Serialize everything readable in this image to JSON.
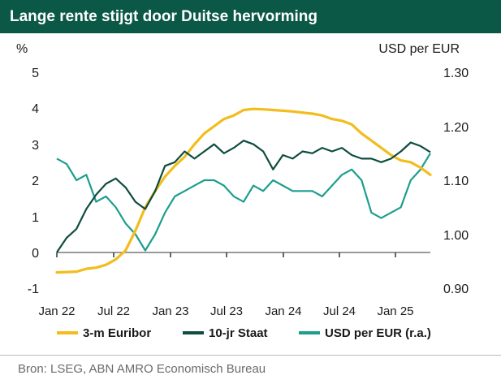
{
  "title": "Lange rente stijgt door Duitse hervorming",
  "source": "Bron: LSEG, ABN AMRO Economisch Bureau",
  "colors": {
    "title_bg": "#0b5847",
    "euribor": "#f2bd1d",
    "staat": "#0e4d3f",
    "usd": "#1c9e8e"
  },
  "chart_data": {
    "type": "line",
    "left_axis": {
      "label": "%",
      "range": [
        -1,
        5
      ],
      "ticks": [
        "-1",
        "0",
        "1",
        "2",
        "3",
        "4",
        "5"
      ]
    },
    "right_axis": {
      "label": "USD per EUR",
      "range": [
        0.9,
        1.3
      ],
      "ticks": [
        "0.90",
        "1.00",
        "1.10",
        "1.20",
        "1.30"
      ]
    },
    "x_ticks": [
      "Jan 22",
      "Jul 22",
      "Jan 23",
      "Jul 23",
      "Jan 24",
      "Jul 24",
      "Jan 25"
    ],
    "series": [
      {
        "name": "3-m Euribor",
        "axis": "left",
        "color_key": "euribor",
        "points": [
          [
            0,
            -0.56
          ],
          [
            1,
            -0.55
          ],
          [
            2,
            -0.54
          ],
          [
            3,
            -0.46
          ],
          [
            4,
            -0.43
          ],
          [
            5,
            -0.35
          ],
          [
            6,
            -0.2
          ],
          [
            7,
            0.05
          ],
          [
            8,
            0.6
          ],
          [
            9,
            1.25
          ],
          [
            10,
            1.7
          ],
          [
            11,
            2.1
          ],
          [
            12,
            2.4
          ],
          [
            13,
            2.65
          ],
          [
            14,
            3.0
          ],
          [
            15,
            3.3
          ],
          [
            16,
            3.5
          ],
          [
            17,
            3.7
          ],
          [
            18,
            3.8
          ],
          [
            19,
            3.95
          ],
          [
            20,
            3.98
          ],
          [
            21,
            3.97
          ],
          [
            22,
            3.95
          ],
          [
            23,
            3.93
          ],
          [
            24,
            3.91
          ],
          [
            25,
            3.88
          ],
          [
            26,
            3.85
          ],
          [
            27,
            3.8
          ],
          [
            28,
            3.7
          ],
          [
            29,
            3.65
          ],
          [
            30,
            3.55
          ],
          [
            31,
            3.3
          ],
          [
            32,
            3.1
          ],
          [
            33,
            2.9
          ],
          [
            34,
            2.7
          ],
          [
            35,
            2.55
          ],
          [
            36,
            2.5
          ],
          [
            37,
            2.35
          ],
          [
            38,
            2.15
          ]
        ]
      },
      {
        "name": "10-jr Staat",
        "axis": "left",
        "color_key": "staat",
        "points": [
          [
            0,
            0.0
          ],
          [
            1,
            0.4
          ],
          [
            2,
            0.65
          ],
          [
            3,
            1.2
          ],
          [
            4,
            1.6
          ],
          [
            5,
            1.9
          ],
          [
            6,
            2.05
          ],
          [
            7,
            1.8
          ],
          [
            8,
            1.4
          ],
          [
            9,
            1.2
          ],
          [
            10,
            1.7
          ],
          [
            11,
            2.4
          ],
          [
            12,
            2.5
          ],
          [
            13,
            2.8
          ],
          [
            14,
            2.6
          ],
          [
            15,
            2.8
          ],
          [
            16,
            3.0
          ],
          [
            17,
            2.75
          ],
          [
            18,
            2.9
          ],
          [
            19,
            3.1
          ],
          [
            20,
            3.0
          ],
          [
            21,
            2.8
          ],
          [
            22,
            2.3
          ],
          [
            23,
            2.7
          ],
          [
            24,
            2.6
          ],
          [
            25,
            2.8
          ],
          [
            26,
            2.75
          ],
          [
            27,
            2.9
          ],
          [
            28,
            2.8
          ],
          [
            29,
            2.9
          ],
          [
            30,
            2.7
          ],
          [
            31,
            2.6
          ],
          [
            32,
            2.6
          ],
          [
            33,
            2.5
          ],
          [
            34,
            2.6
          ],
          [
            35,
            2.8
          ],
          [
            36,
            3.05
          ],
          [
            37,
            2.95
          ],
          [
            38,
            2.78
          ]
        ]
      },
      {
        "name": "USD per EUR (r.a.)",
        "axis": "right",
        "color_key": "usd",
        "points": [
          [
            0,
            1.14
          ],
          [
            1,
            1.13
          ],
          [
            2,
            1.1
          ],
          [
            3,
            1.11
          ],
          [
            4,
            1.06
          ],
          [
            5,
            1.07
          ],
          [
            6,
            1.05
          ],
          [
            7,
            1.02
          ],
          [
            8,
            1.0
          ],
          [
            9,
            0.97
          ],
          [
            10,
            1.0
          ],
          [
            11,
            1.04
          ],
          [
            12,
            1.07
          ],
          [
            13,
            1.08
          ],
          [
            14,
            1.09
          ],
          [
            15,
            1.1
          ],
          [
            16,
            1.1
          ],
          [
            17,
            1.09
          ],
          [
            18,
            1.07
          ],
          [
            19,
            1.06
          ],
          [
            20,
            1.09
          ],
          [
            21,
            1.08
          ],
          [
            22,
            1.1
          ],
          [
            23,
            1.09
          ],
          [
            24,
            1.08
          ],
          [
            25,
            1.08
          ],
          [
            26,
            1.08
          ],
          [
            27,
            1.07
          ],
          [
            28,
            1.09
          ],
          [
            29,
            1.11
          ],
          [
            30,
            1.12
          ],
          [
            31,
            1.1
          ],
          [
            32,
            1.04
          ],
          [
            33,
            1.03
          ],
          [
            34,
            1.04
          ],
          [
            35,
            1.05
          ],
          [
            36,
            1.1
          ],
          [
            37,
            1.12
          ],
          [
            38,
            1.15
          ]
        ]
      }
    ]
  }
}
